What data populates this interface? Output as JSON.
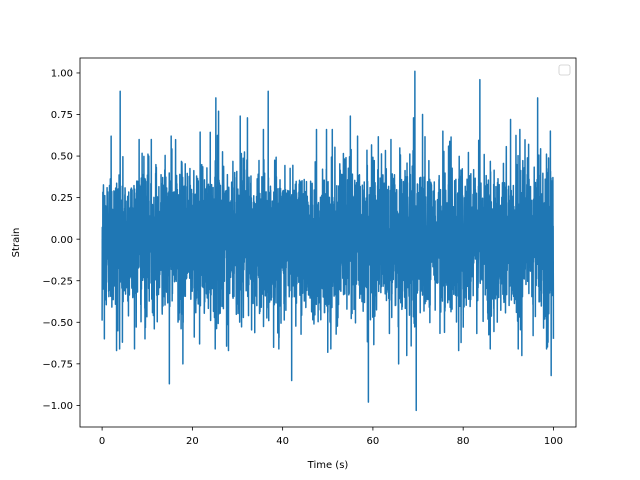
{
  "chart_data": {
    "type": "line",
    "title": "",
    "xlabel": "Time (s)",
    "ylabel": "Strain",
    "xlim": [
      -4.9,
      105.0
    ],
    "ylim": [
      -1.13,
      1.09
    ],
    "xticks": [
      0,
      20,
      40,
      60,
      80,
      100
    ],
    "xtick_labels": [
      "0",
      "20",
      "40",
      "60",
      "80",
      "100"
    ],
    "yticks": [
      -1.0,
      -0.75,
      -0.5,
      -0.25,
      0.0,
      0.25,
      0.5,
      0.75,
      1.0
    ],
    "ytick_labels": [
      "−1.00",
      "−0.75",
      "−0.50",
      "−0.25",
      "0.00",
      "0.25",
      "0.50",
      "0.75",
      "1.00"
    ],
    "grid": false,
    "legend": {
      "position": "top-right",
      "entries": []
    },
    "series": [
      {
        "color": "#1f77b4",
        "x_start": 0,
        "x_end": 100,
        "typical_range": [
          -0.45,
          0.45
        ],
        "peaks": [
          {
            "x": 0.0,
            "y": 0.28
          },
          {
            "x": 0.0,
            "y": -0.49
          },
          {
            "x": 0.5,
            "y": 0.56
          },
          {
            "x": 0.5,
            "y": -0.6
          },
          {
            "x": 2.0,
            "y": 0.62
          },
          {
            "x": 3.2,
            "y": -0.67
          },
          {
            "x": 4.0,
            "y": 0.89
          },
          {
            "x": 4.5,
            "y": -0.62
          },
          {
            "x": 8.2,
            "y": 0.6
          },
          {
            "x": 9.5,
            "y": -0.6
          },
          {
            "x": 10.9,
            "y": 0.6
          },
          {
            "x": 14.9,
            "y": -0.87
          },
          {
            "x": 15.3,
            "y": 0.62
          },
          {
            "x": 17.9,
            "y": -0.75
          },
          {
            "x": 21.6,
            "y": -0.63
          },
          {
            "x": 25.2,
            "y": 0.85
          },
          {
            "x": 25.8,
            "y": 0.77
          },
          {
            "x": 28.0,
            "y": -0.67
          },
          {
            "x": 30.6,
            "y": 0.74
          },
          {
            "x": 32.2,
            "y": 0.73
          },
          {
            "x": 36.8,
            "y": 0.89
          },
          {
            "x": 38.0,
            "y": -0.65
          },
          {
            "x": 42.0,
            "y": -0.85
          },
          {
            "x": 47.5,
            "y": 0.66
          },
          {
            "x": 50.0,
            "y": -0.68
          },
          {
            "x": 51.0,
            "y": 0.66
          },
          {
            "x": 55.0,
            "y": 0.74
          },
          {
            "x": 56.6,
            "y": 0.62
          },
          {
            "x": 59.0,
            "y": -0.98
          },
          {
            "x": 64.0,
            "y": 0.6
          },
          {
            "x": 65.7,
            "y": -0.75
          },
          {
            "x": 67.5,
            "y": -0.7
          },
          {
            "x": 69.0,
            "y": 0.73
          },
          {
            "x": 69.3,
            "y": 1.01
          },
          {
            "x": 69.6,
            "y": -1.03
          },
          {
            "x": 71.0,
            "y": 0.75
          },
          {
            "x": 75.5,
            "y": 0.65
          },
          {
            "x": 79.0,
            "y": -0.67
          },
          {
            "x": 83.7,
            "y": 0.96
          },
          {
            "x": 86.0,
            "y": -0.66
          },
          {
            "x": 90.5,
            "y": 0.72
          },
          {
            "x": 93.0,
            "y": -0.7
          },
          {
            "x": 94.5,
            "y": 0.57
          },
          {
            "x": 95.5,
            "y": -0.58
          },
          {
            "x": 96.5,
            "y": 0.85
          },
          {
            "x": 98.8,
            "y": -0.62
          },
          {
            "x": 99.5,
            "y": -0.82
          },
          {
            "x": 100.0,
            "y": 0.55
          },
          {
            "x": 100.0,
            "y": -0.6
          }
        ]
      }
    ]
  }
}
